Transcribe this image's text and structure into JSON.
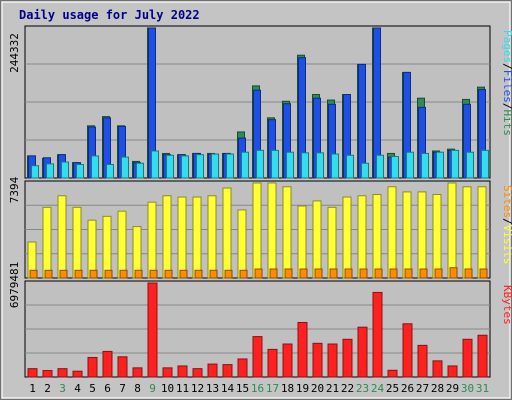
{
  "chart_data": {
    "type": "bar",
    "title": "Daily usage for July 2022",
    "categories": [
      "1",
      "2",
      "3",
      "4",
      "5",
      "6",
      "7",
      "8",
      "9",
      "10",
      "11",
      "12",
      "13",
      "14",
      "15",
      "16",
      "17",
      "18",
      "19",
      "20",
      "21",
      "22",
      "23",
      "24",
      "25",
      "26",
      "27",
      "28",
      "29",
      "30",
      "31"
    ],
    "weekend_days": [
      "3",
      "9",
      "16",
      "17",
      "23",
      "24",
      "30",
      "31"
    ],
    "panels": [
      {
        "name": "hits-files-pages",
        "y_max_label": "244332",
        "ylim": [
          0,
          244332
        ],
        "right_label_parts": [
          "Pages",
          "/",
          "Files",
          "/",
          "Hits"
        ],
        "series": [
          {
            "name": "Hits",
            "values": [
              36000,
              32000,
              38000,
              25000,
              85000,
              100000,
              85000,
              27000,
              244332,
              40000,
              38000,
              40000,
              40000,
              40000,
              75000,
              150000,
              98000,
              125000,
              200000,
              136000,
              127000,
              136000,
              185000,
              244332,
              40000,
              172000,
              130000,
              44000,
              47000,
              128000,
              148000
            ]
          },
          {
            "name": "Files",
            "values": [
              36000,
              33000,
              38000,
              25000,
              83000,
              98000,
              84000,
              25000,
              244332,
              38000,
              38000,
              40000,
              39000,
              40000,
              65000,
              143000,
              95000,
              121000,
              196000,
              130000,
              120000,
              136000,
              185000,
              244332,
              34000,
              172000,
              115000,
              42000,
              45000,
              120000,
              144000
            ]
          },
          {
            "name": "Pages",
            "values": [
              20000,
              23000,
              26000,
              22000,
              36000,
              22000,
              34000,
              24000,
              44000,
              37000,
              36000,
              38000,
              39000,
              39000,
              42000,
              45000,
              45000,
              42000,
              41000,
              41000,
              39000,
              37000,
              24000,
              37000,
              35000,
              42000,
              40000,
              42000,
              45000,
              42000,
              45000
            ]
          }
        ]
      },
      {
        "name": "visits-sites",
        "y_max_label": "7394",
        "ylim": [
          0,
          7394
        ],
        "right_label_parts": [
          "Sites",
          "/",
          "Visits"
        ],
        "series": [
          {
            "name": "Visits",
            "values": [
              2800,
              5500,
              6400,
              5500,
              4500,
              4800,
              5200,
              4000,
              5900,
              6400,
              6300,
              6300,
              6400,
              7000,
              5300,
              7394,
              7394,
              7100,
              5600,
              6000,
              5500,
              6300,
              6400,
              6500,
              7100,
              6700,
              6700,
              6500,
              7394,
              7100,
              7100
            ]
          },
          {
            "name": "Sites",
            "values": [
              600,
              600,
              600,
              600,
              600,
              600,
              600,
              600,
              600,
              600,
              600,
              600,
              600,
              600,
              600,
              700,
              700,
              700,
              700,
              700,
              700,
              700,
              700,
              700,
              700,
              700,
              700,
              700,
              800,
              700,
              700
            ]
          }
        ]
      },
      {
        "name": "kbytes",
        "y_max_label": "6979481",
        "ylim": [
          0,
          6979481
        ],
        "right_label_parts": [
          "KBytes"
        ],
        "series": [
          {
            "name": "KBytes",
            "values": [
              620000,
              480000,
              620000,
              430000,
              1450000,
              1900000,
              1500000,
              680000,
              6979481,
              680000,
              820000,
              620000,
              960000,
              920000,
              1340000,
              3000000,
              2050000,
              2450000,
              4050000,
              2500000,
              2450000,
              2800000,
              3700000,
              6279000,
              500000,
              3950000,
              2350000,
              1200000,
              820000,
              2800000,
              3100000
            ]
          }
        ]
      }
    ],
    "colors": {
      "hits": "#2e8b57",
      "files": "#1e50e6",
      "pages": "#33ddee",
      "visits": "#ffff33",
      "sites": "#ff8c00",
      "kbytes": "#ff2020",
      "title": "#00008b",
      "weekend_tick": "#2e8b57",
      "weekday_tick": "#000000",
      "plot_bg": "#c0c0c0"
    }
  }
}
